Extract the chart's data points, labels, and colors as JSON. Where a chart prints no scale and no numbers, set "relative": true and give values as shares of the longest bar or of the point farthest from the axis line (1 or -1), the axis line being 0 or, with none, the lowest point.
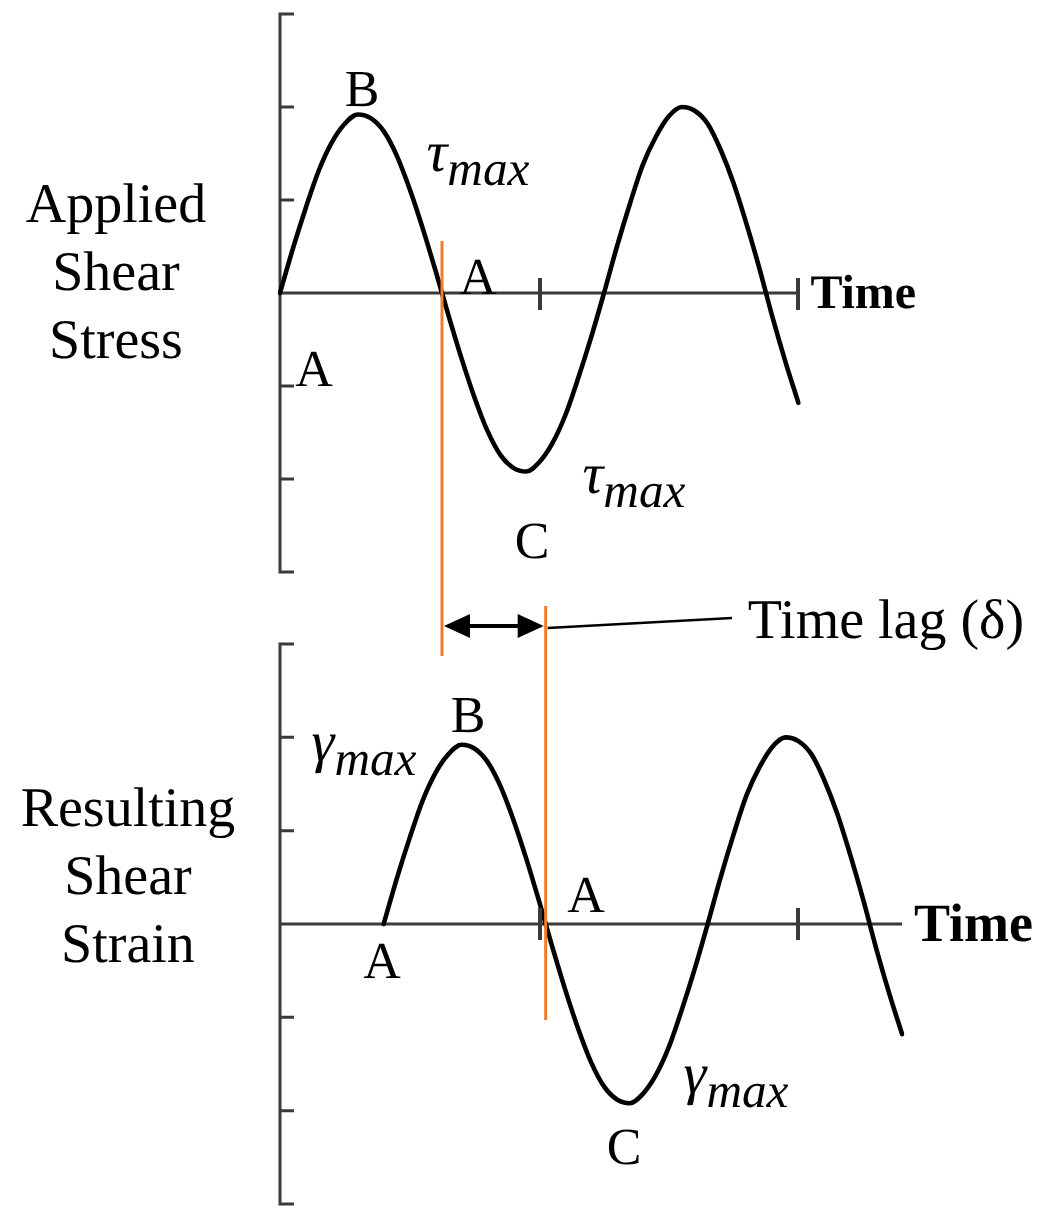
{
  "chart_data": [
    {
      "type": "line",
      "ylabel": "Applied Shear Stress",
      "xlabel": "Time",
      "relative": true,
      "categories": [
        null,
        null,
        null,
        null,
        null,
        null,
        null,
        null,
        null,
        null,
        null,
        null,
        null,
        null,
        null,
        null,
        null,
        null,
        null,
        null,
        null,
        null,
        null,
        null,
        null,
        null,
        null,
        null,
        null,
        null,
        null,
        null,
        null,
        null,
        null,
        null,
        null,
        null,
        null,
        null,
        null
      ],
      "series": [
        {
          "color": "#000000",
          "values": [
            0,
            0.24,
            0.46,
            0.66,
            0.81,
            0.91,
            0.96,
            0.94,
            0.87,
            0.74,
            0.56,
            0.35,
            0.12,
            -0.12,
            -0.35,
            -0.56,
            -0.74,
            -0.87,
            -0.94,
            -0.96,
            -0.91,
            -0.81,
            -0.66,
            -0.46,
            -0.24,
            0,
            0.25,
            0.48,
            0.69,
            0.84,
            0.95,
            1.0,
            0.98,
            0.91,
            0.77,
            0.59,
            0.37,
            0.13,
            -0.13,
            -0.37,
            -0.59
          ]
        }
      ],
      "annotations": [
        "B",
        "τ$_{max}$",
        "A",
        "A",
        "τ$_{max}$",
        "C"
      ]
    },
    {
      "type": "line",
      "ylabel": "Resulting Shear Strain",
      "xlabel": "Time",
      "relative": true,
      "categories": [
        null,
        null,
        null,
        null,
        null,
        null,
        null,
        null,
        null,
        null,
        null,
        null,
        null,
        null,
        null,
        null,
        null,
        null,
        null,
        null,
        null,
        null,
        null,
        null,
        null,
        null,
        null,
        null,
        null,
        null,
        null,
        null,
        null,
        null,
        null,
        null,
        null,
        null,
        null,
        null,
        null,
        null,
        null,
        null,
        null,
        null,
        null,
        null,
        null
      ],
      "series": [
        {
          "color": "#000000",
          "values": [
            null,
            null,
            null,
            null,
            null,
            null,
            null,
            null,
            0,
            0.24,
            0.46,
            0.66,
            0.81,
            0.91,
            0.96,
            0.94,
            0.87,
            0.74,
            0.56,
            0.35,
            0.12,
            -0.12,
            -0.35,
            -0.56,
            -0.74,
            -0.87,
            -0.94,
            -0.96,
            -0.91,
            -0.81,
            -0.66,
            -0.46,
            -0.24,
            0,
            0.25,
            0.48,
            0.69,
            0.84,
            0.95,
            1.0,
            0.98,
            0.91,
            0.77,
            0.59,
            0.37,
            0.13,
            -0.13,
            -0.37,
            -0.59
          ]
        }
      ],
      "annotations": [
        "Time lag (δ)",
        "B",
        "γ$_{max}$",
        "A",
        "A",
        "γ$_{max}$",
        "C"
      ]
    }
  ]
}
